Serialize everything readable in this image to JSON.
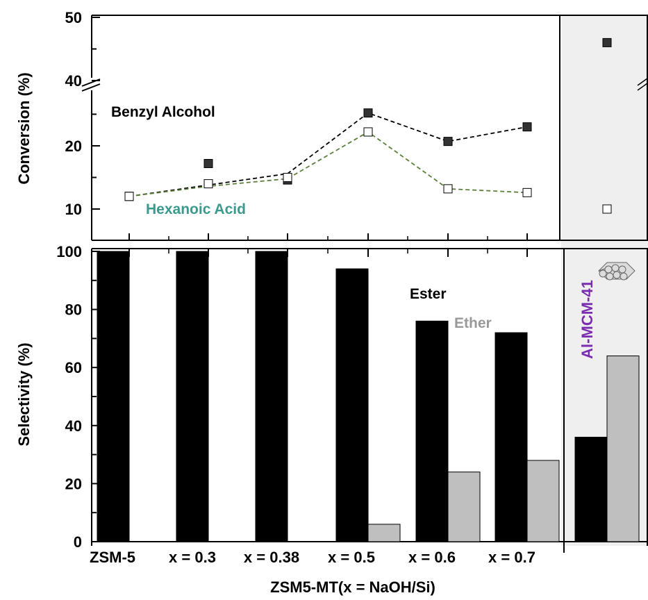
{
  "chart_data": [
    {
      "type": "scatter",
      "ylabel": "Conversion (%)",
      "ylim": [
        7,
        50
      ],
      "y_break": [
        30,
        40
      ],
      "yticks": [
        "10",
        "20",
        "40",
        "50"
      ],
      "categories": [
        "ZSM-5",
        "x = 0.3",
        "x = 0.38",
        "x = 0.5",
        "x = 0.6",
        "x = 0.7",
        "Al-MCM-41"
      ],
      "series": [
        {
          "name": "Benzyl Alcohol",
          "marker": "filled-square",
          "color": "#000000",
          "line_color": "#000000",
          "values": [
            12.0,
            17.2,
            14.6,
            25.2,
            20.7,
            23.0,
            46.0
          ],
          "line_values": [
            12.0,
            13.8,
            15.6,
            25.2,
            20.7,
            23.0
          ]
        },
        {
          "name": "Hexanoic Acid",
          "marker": "open-square",
          "color": "#000000",
          "line_color": "#5b7f3a",
          "values": [
            12.0,
            14.0,
            15.0,
            22.2,
            13.2,
            12.6,
            10.0
          ],
          "line_values": [
            12.0,
            13.6,
            14.8,
            22.2,
            13.2,
            12.6
          ]
        }
      ],
      "series_label_colors": [
        "#000000",
        "#3a9a8e"
      ]
    },
    {
      "type": "bar",
      "ylabel": "Selectivity (%)",
      "xlabel": "ZSM5-MT(x = NaOH/Si)",
      "ylim": [
        0,
        100
      ],
      "yticks": [
        "0",
        "20",
        "40",
        "60",
        "80",
        "100"
      ],
      "categories": [
        "ZSM-5",
        "x = 0.3",
        "x = 0.38",
        "x = 0.5",
        "x = 0.6",
        "x = 0.7",
        "Al-MCM-41"
      ],
      "category_colors": [
        "#000000",
        "#ff1a1a",
        "#1a7acc",
        "#4a8a2a",
        "#ffb300",
        "#ff33ff",
        "#000000"
      ],
      "series": [
        {
          "name": "Ester",
          "color": "#000000",
          "values": [
            100,
            100,
            100,
            94,
            76,
            72,
            36
          ]
        },
        {
          "name": "Ether",
          "color": "#bfbfbf",
          "values": [
            0,
            0,
            0,
            6,
            24,
            28,
            64
          ]
        }
      ],
      "annotation": "Al-MCM-41",
      "annotation_color": "#7a2cb0"
    }
  ]
}
